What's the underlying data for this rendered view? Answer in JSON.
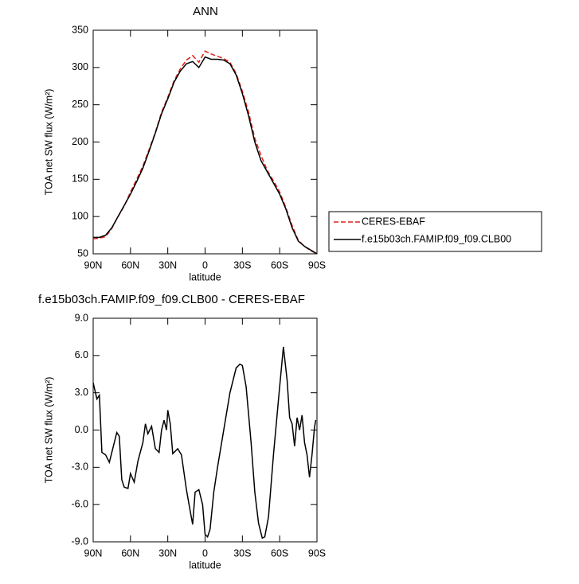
{
  "chart_data": [
    {
      "type": "line",
      "title": "ANN",
      "xlabel": "latitude",
      "ylabel": "TOA net SW flux (W/m²)",
      "x": [
        90,
        85,
        80,
        75,
        70,
        65,
        60,
        55,
        50,
        45,
        40,
        35,
        30,
        25,
        20,
        15,
        10,
        5,
        0,
        -5,
        -10,
        -15,
        -20,
        -25,
        -30,
        -35,
        -40,
        -45,
        -50,
        -55,
        -60,
        -65,
        -70,
        -75,
        -80,
        -85,
        -90
      ],
      "series": [
        {
          "name": "CERES-EBAF",
          "color": "#e0201b",
          "linestyle": "dashed",
          "values": [
            70,
            71,
            73,
            84,
            100,
            114,
            133,
            150,
            168,
            190,
            213,
            240,
            260,
            282,
            298,
            310,
            316,
            307,
            322,
            318,
            315,
            312,
            307,
            292,
            268,
            240,
            205,
            182,
            162,
            148,
            133,
            112,
            88,
            68,
            60,
            54,
            50
          ]
        },
        {
          "name": "f.e15b03ch.FAMIP.f09_f09.CLB00",
          "color": "#000000",
          "linestyle": "solid",
          "values": [
            72,
            72,
            75,
            85,
            100,
            115,
            130,
            147,
            165,
            188,
            212,
            238,
            258,
            280,
            295,
            305,
            308,
            300,
            314,
            311,
            311,
            310,
            305,
            290,
            265,
            235,
            200,
            175,
            160,
            145,
            130,
            110,
            85,
            67,
            60,
            55,
            50
          ]
        }
      ],
      "xlim": [
        90,
        -90
      ],
      "xticks": [
        {
          "value": 90,
          "label": "90N"
        },
        {
          "value": 60,
          "label": "60N"
        },
        {
          "value": 30,
          "label": "30N"
        },
        0,
        {
          "value": -30,
          "label": "30S"
        },
        {
          "value": -60,
          "label": "60S"
        },
        {
          "value": -90,
          "label": "90S"
        }
      ],
      "ylim": [
        50,
        350
      ],
      "yticks": [
        50,
        100,
        150,
        200,
        250,
        300,
        350
      ],
      "legend": "right"
    },
    {
      "type": "line",
      "title": "f.e15b03ch.FAMIP.f09_f09.CLB00 - CERES-EBAF",
      "xlabel": "latitude",
      "ylabel": "TOA net SW flux (W/m²)",
      "x": [
        90,
        87,
        85,
        83,
        80,
        77,
        73,
        71,
        69,
        67,
        65,
        62,
        60,
        57,
        54,
        50,
        48,
        46,
        43,
        40,
        37,
        35,
        33,
        31,
        30,
        28,
        26,
        22,
        19,
        15,
        12,
        10,
        8,
        5,
        2,
        0,
        -2,
        -4,
        -7,
        -10,
        -15,
        -20,
        -25,
        -28,
        -30,
        -33,
        -37,
        -40,
        -43,
        -46,
        -48,
        -51,
        -55,
        -60,
        -63,
        -66,
        -68,
        -70,
        -72,
        -74,
        -76,
        -78,
        -80,
        -82,
        -84,
        -86,
        -88,
        -89
      ],
      "series": [
        {
          "color": "#000000",
          "linestyle": "solid",
          "values": [
            3.8,
            2.5,
            2.8,
            -1.8,
            -2.0,
            -2.6,
            -1.0,
            -0.2,
            -0.5,
            -4.0,
            -4.6,
            -4.7,
            -3.5,
            -4.2,
            -2.5,
            -1.0,
            0.5,
            -0.3,
            0.3,
            -1.5,
            -1.8,
            0.0,
            0.8,
            0.0,
            1.6,
            0.5,
            -1.9,
            -1.5,
            -2.0,
            -4.8,
            -6.5,
            -7.6,
            -5.0,
            -4.8,
            -6.0,
            -8.4,
            -8.6,
            -8.0,
            -5.0,
            -3.0,
            0.0,
            3.0,
            5.0,
            5.3,
            5.2,
            3.5,
            -1.0,
            -5.0,
            -7.5,
            -8.7,
            -8.6,
            -7.0,
            -2.0,
            3.5,
            6.7,
            4.0,
            1.0,
            0.5,
            -1.3,
            1.0,
            0.0,
            1.2,
            -1.0,
            -2.0,
            -3.8,
            -2.0,
            0.2,
            0.8
          ]
        }
      ],
      "xlim": [
        90,
        -90
      ],
      "xticks": [
        {
          "value": 90,
          "label": "90N"
        },
        {
          "value": 60,
          "label": "60N"
        },
        {
          "value": 30,
          "label": "30N"
        },
        0,
        {
          "value": -30,
          "label": "30S"
        },
        {
          "value": -60,
          "label": "60S"
        },
        {
          "value": -90,
          "label": "90S"
        }
      ],
      "ylim": [
        -9,
        9
      ],
      "yticks": [
        {
          "value": -9,
          "label": "-9.0"
        },
        {
          "value": -6,
          "label": "-6.0"
        },
        {
          "value": -3,
          "label": "-3.0"
        },
        {
          "value": 0,
          "label": "0.0"
        },
        {
          "value": 3,
          "label": "3.0"
        },
        {
          "value": 6,
          "label": "6.0"
        },
        {
          "value": 9,
          "label": "9.0"
        }
      ]
    }
  ]
}
